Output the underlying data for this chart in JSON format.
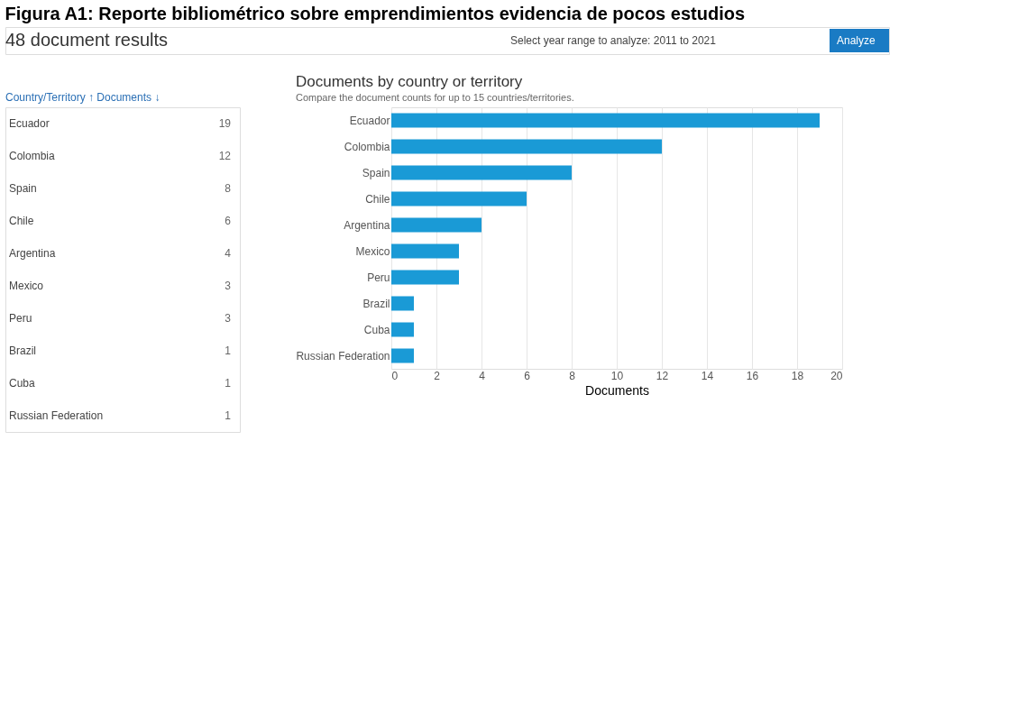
{
  "chart_data": [
    {
      "type": "other",
      "title": "Figura A1: Reporte bibliométrico sobre emprendimientos evidencia de pocos estudios",
      "annotations": [
        "48 document results",
        "Select year range to analyze: 2011 to 2021",
        "Analyze",
        "Country/Territory ↑",
        "Documents ↓"
      ],
      "categories": [
        "Ecuador",
        "Colombia",
        "Spain",
        "Chile",
        "Argentina",
        "Mexico",
        "Peru",
        "Brazil",
        "Cuba",
        "Russian Federation"
      ],
      "values": [
        19,
        12,
        8,
        6,
        4,
        3,
        3,
        1,
        1,
        1
      ],
      "data_labels": true
    },
    {
      "type": "bar",
      "orientation": "horizontal",
      "title": "Documents by country or territory",
      "subtitle": "Compare the document counts for up to 15 countries/territories.",
      "categories": [
        "Ecuador",
        "Colombia",
        "Spain",
        "Chile",
        "Argentina",
        "Mexico",
        "Peru",
        "Brazil",
        "Cuba",
        "Russian Federation"
      ],
      "values": [
        19,
        12,
        8,
        6,
        4,
        3,
        3,
        1,
        1,
        1
      ],
      "color": "#1a9ad6",
      "xlabel": "Documents",
      "xlim": [
        0,
        20
      ],
      "xticks": [
        0,
        2,
        4,
        6,
        8,
        10,
        12,
        14,
        16,
        18,
        20
      ],
      "grid": "x"
    }
  ]
}
